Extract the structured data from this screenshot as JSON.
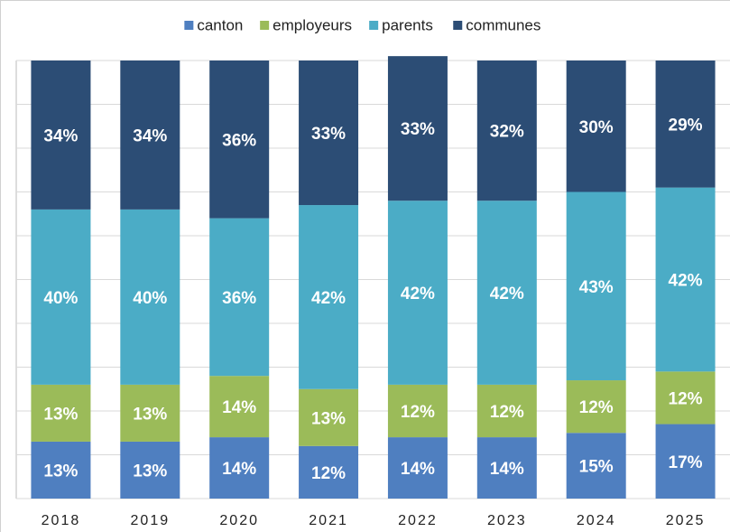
{
  "chart_data": {
    "type": "stacked_bar",
    "categories": [
      "2018",
      "2019",
      "2020",
      "2021",
      "2022",
      "2023",
      "2024",
      "2025"
    ],
    "series": [
      {
        "name": "canton",
        "color": "#4f7fc0",
        "values": [
          13,
          13,
          14,
          12,
          14,
          14,
          15,
          17
        ],
        "value_labels": [
          "13%",
          "13%",
          "14%",
          "12%",
          "14%",
          "14%",
          "15%",
          "17%"
        ]
      },
      {
        "name": "employeurs",
        "color": "#9bbb59",
        "values": [
          13,
          13,
          14,
          13,
          12,
          12,
          12,
          12
        ],
        "value_labels": [
          "13%",
          "13%",
          "14%",
          "13%",
          "12%",
          "12%",
          "12%",
          "12%"
        ]
      },
      {
        "name": "parents",
        "color": "#4bacc6",
        "values": [
          40,
          40,
          36,
          42,
          42,
          42,
          43,
          42
        ],
        "value_labels": [
          "40%",
          "40%",
          "36%",
          "42%",
          "42%",
          "42%",
          "43%",
          "42%"
        ]
      },
      {
        "name": "communes",
        "color": "#2c4d75",
        "values": [
          34,
          34,
          36,
          33,
          33,
          32,
          30,
          29
        ],
        "value_labels": [
          "34%",
          "34%",
          "36%",
          "33%",
          "33%",
          "32%",
          "30%",
          "29%"
        ]
      }
    ],
    "ylim": [
      0,
      100
    ],
    "yticks": [
      0,
      10,
      20,
      30,
      40,
      50,
      60,
      70,
      80,
      90,
      100
    ],
    "grid": true,
    "legend": "top"
  }
}
